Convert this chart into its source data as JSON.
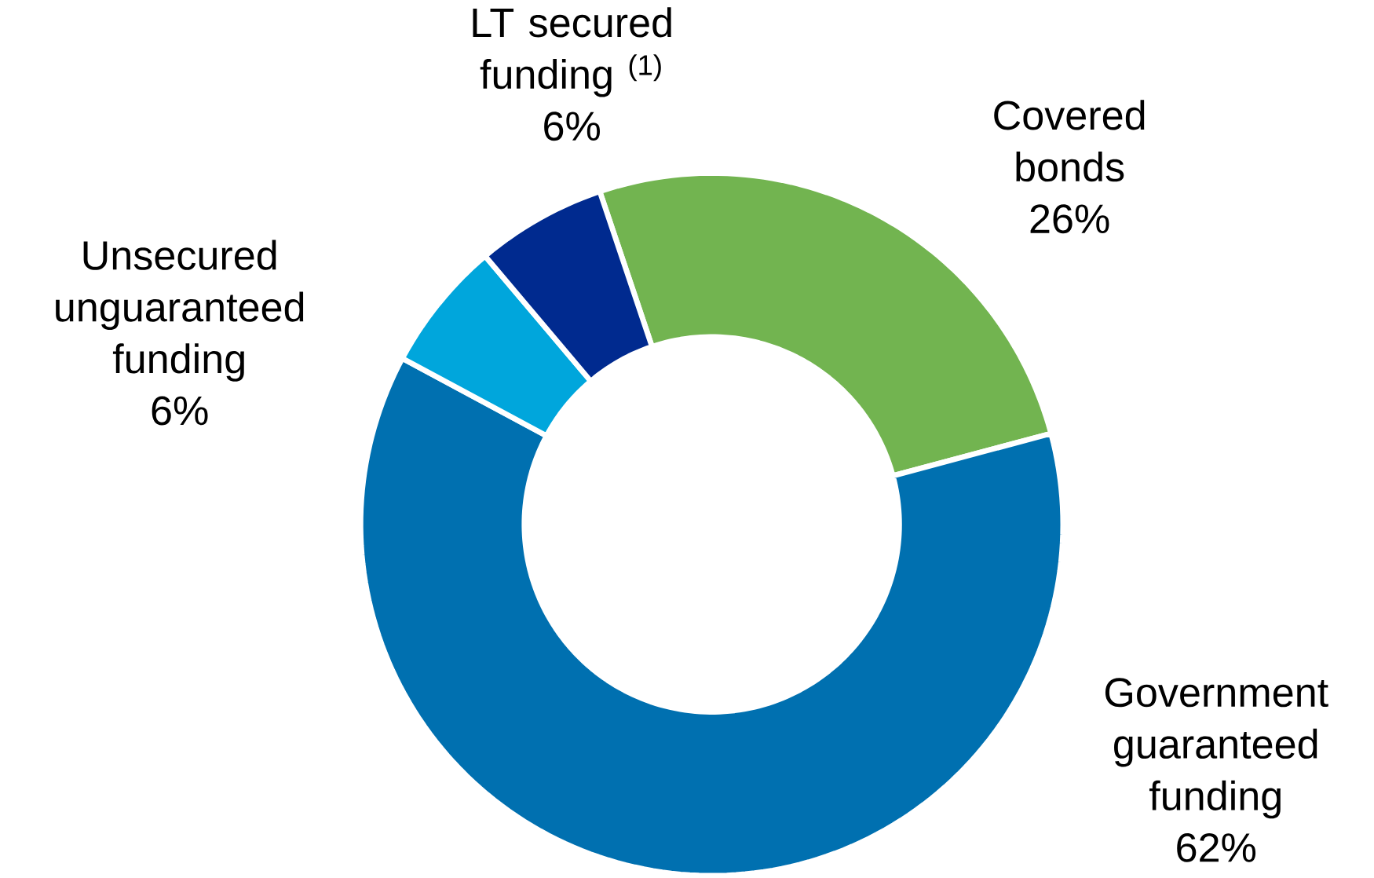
{
  "chart_data": {
    "type": "donut",
    "categories": [
      "Covered bonds",
      "Government guaranteed funding",
      "Unsecured unguaranteed funding",
      "LT secured funding $^{(1)}$"
    ],
    "values": [
      26,
      62,
      6,
      6
    ],
    "value_labels": [
      "26%",
      "62%",
      "6%",
      "6%"
    ],
    "colors": [
      "#72b450",
      "#0070b0",
      "#00a6dc",
      "#002a8f"
    ]
  }
}
